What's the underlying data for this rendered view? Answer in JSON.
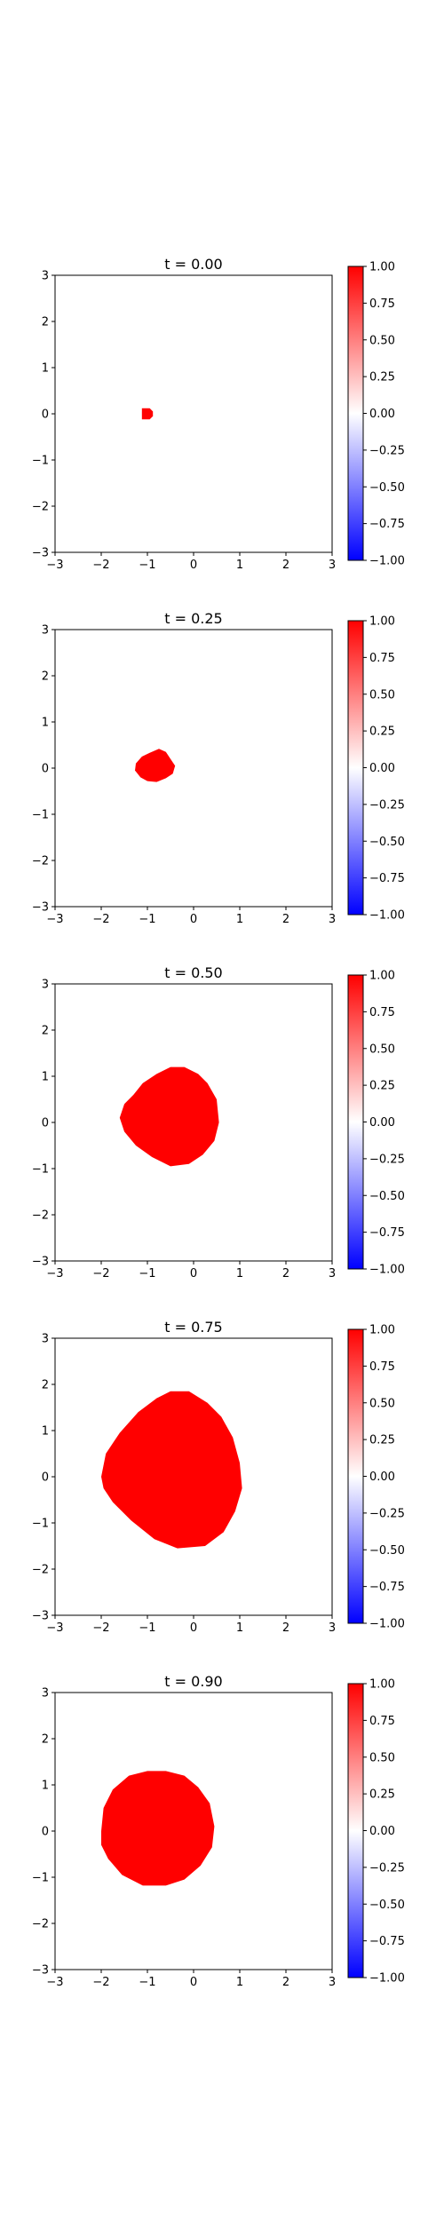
{
  "chart_data": [
    {
      "type": "heatmap",
      "title": "t = 0.00",
      "xlim": [
        -3,
        3
      ],
      "ylim": [
        -3,
        3
      ],
      "xticks": [
        "−3",
        "−2",
        "−1",
        "0",
        "1",
        "2",
        "3"
      ],
      "yticks": [
        "3",
        "2",
        "1",
        "0",
        "−1",
        "−2",
        "−3"
      ],
      "region_value": 1.0,
      "background_value": 0.0,
      "region_outline": [
        [
          -1.12,
          0.12
        ],
        [
          -0.95,
          0.12
        ],
        [
          -0.88,
          0.05
        ],
        [
          -0.88,
          -0.05
        ],
        [
          -0.95,
          -0.12
        ],
        [
          -1.12,
          -0.12
        ]
      ],
      "colorbar": {
        "cmap": "bwr",
        "vmin": -1.0,
        "vmax": 1.0,
        "ticks": [
          "1.00",
          "0.75",
          "0.50",
          "0.25",
          "0.00",
          "−0.25",
          "−0.50",
          "−0.75",
          "−1.00"
        ],
        "tick_values": [
          1.0,
          0.75,
          0.5,
          0.25,
          0.0,
          -0.25,
          -0.5,
          -0.75,
          -1.0
        ]
      }
    },
    {
      "type": "heatmap",
      "title": "t = 0.25",
      "xlim": [
        -3,
        3
      ],
      "ylim": [
        -3,
        3
      ],
      "xticks": [
        "−3",
        "−2",
        "−1",
        "0",
        "1",
        "2",
        "3"
      ],
      "yticks": [
        "3",
        "2",
        "1",
        "0",
        "−1",
        "−2",
        "−3"
      ],
      "region_value": 1.0,
      "background_value": 0.0,
      "region_outline": [
        [
          -1.25,
          0.1
        ],
        [
          -1.12,
          0.25
        ],
        [
          -0.95,
          0.33
        ],
        [
          -0.75,
          0.42
        ],
        [
          -0.6,
          0.35
        ],
        [
          -0.5,
          0.2
        ],
        [
          -0.4,
          0.05
        ],
        [
          -0.45,
          -0.12
        ],
        [
          -0.6,
          -0.22
        ],
        [
          -0.8,
          -0.3
        ],
        [
          -1.0,
          -0.28
        ],
        [
          -1.15,
          -0.2
        ],
        [
          -1.27,
          -0.05
        ]
      ],
      "colorbar": {
        "cmap": "bwr",
        "vmin": -1.0,
        "vmax": 1.0,
        "ticks": [
          "1.00",
          "0.75",
          "0.50",
          "0.25",
          "0.00",
          "−0.25",
          "−0.50",
          "−0.75",
          "−1.00"
        ],
        "tick_values": [
          1.0,
          0.75,
          0.5,
          0.25,
          0.0,
          -0.25,
          -0.5,
          -0.75,
          -1.0
        ]
      }
    },
    {
      "type": "heatmap",
      "title": "t = 0.50",
      "xlim": [
        -3,
        3
      ],
      "ylim": [
        -3,
        3
      ],
      "xticks": [
        "−3",
        "−2",
        "−1",
        "0",
        "1",
        "2",
        "3"
      ],
      "yticks": [
        "3",
        "2",
        "1",
        "0",
        "−1",
        "−2",
        "−3"
      ],
      "region_value": 1.0,
      "background_value": 0.0,
      "region_outline": [
        [
          -1.6,
          0.1
        ],
        [
          -1.5,
          0.4
        ],
        [
          -1.3,
          0.6
        ],
        [
          -1.1,
          0.85
        ],
        [
          -0.8,
          1.05
        ],
        [
          -0.5,
          1.2
        ],
        [
          -0.2,
          1.2
        ],
        [
          0.1,
          1.05
        ],
        [
          0.3,
          0.85
        ],
        [
          0.5,
          0.5
        ],
        [
          0.55,
          0.0
        ],
        [
          0.45,
          -0.4
        ],
        [
          0.2,
          -0.7
        ],
        [
          -0.1,
          -0.9
        ],
        [
          -0.5,
          -0.95
        ],
        [
          -0.9,
          -0.75
        ],
        [
          -1.25,
          -0.5
        ],
        [
          -1.5,
          -0.2
        ]
      ],
      "colorbar": {
        "cmap": "bwr",
        "vmin": -1.0,
        "vmax": 1.0,
        "ticks": [
          "1.00",
          "0.75",
          "0.50",
          "0.25",
          "0.00",
          "−0.25",
          "−0.50",
          "−0.75",
          "−1.00"
        ],
        "tick_values": [
          1.0,
          0.75,
          0.5,
          0.25,
          0.0,
          -0.25,
          -0.5,
          -0.75,
          -1.0
        ]
      }
    },
    {
      "type": "heatmap",
      "title": "t = 0.75",
      "xlim": [
        -3,
        3
      ],
      "ylim": [
        -3,
        3
      ],
      "xticks": [
        "−3",
        "−2",
        "−1",
        "0",
        "1",
        "2",
        "3"
      ],
      "yticks": [
        "3",
        "2",
        "1",
        "0",
        "−1",
        "−2",
        "−3"
      ],
      "region_value": 1.0,
      "background_value": 0.0,
      "region_outline": [
        [
          -2.0,
          0.0
        ],
        [
          -1.9,
          0.5
        ],
        [
          -1.6,
          0.95
        ],
        [
          -1.2,
          1.4
        ],
        [
          -0.8,
          1.7
        ],
        [
          -0.5,
          1.85
        ],
        [
          -0.1,
          1.85
        ],
        [
          0.3,
          1.6
        ],
        [
          0.6,
          1.3
        ],
        [
          0.85,
          0.85
        ],
        [
          1.0,
          0.3
        ],
        [
          1.05,
          -0.25
        ],
        [
          0.9,
          -0.75
        ],
        [
          0.65,
          -1.2
        ],
        [
          0.25,
          -1.5
        ],
        [
          -0.35,
          -1.55
        ],
        [
          -0.85,
          -1.35
        ],
        [
          -1.35,
          -0.95
        ],
        [
          -1.75,
          -0.55
        ],
        [
          -1.95,
          -0.25
        ]
      ],
      "colorbar": {
        "cmap": "bwr",
        "vmin": -1.0,
        "vmax": 1.0,
        "ticks": [
          "1.00",
          "0.75",
          "0.50",
          "0.25",
          "0.00",
          "−0.25",
          "−0.50",
          "−0.75",
          "−1.00"
        ],
        "tick_values": [
          1.0,
          0.75,
          0.5,
          0.25,
          0.0,
          -0.25,
          -0.5,
          -0.75,
          -1.0
        ]
      }
    },
    {
      "type": "heatmap",
      "title": "t = 0.90",
      "xlim": [
        -3,
        3
      ],
      "ylim": [
        -3,
        3
      ],
      "xticks": [
        "−3",
        "−2",
        "−1",
        "0",
        "1",
        "2",
        "3"
      ],
      "yticks": [
        "3",
        "2",
        "1",
        "0",
        "−1",
        "−2",
        "−3"
      ],
      "region_value": 1.0,
      "background_value": 0.0,
      "region_outline": [
        [
          -2.0,
          0.0
        ],
        [
          -1.95,
          0.5
        ],
        [
          -1.75,
          0.9
        ],
        [
          -1.4,
          1.2
        ],
        [
          -1.0,
          1.3
        ],
        [
          -0.6,
          1.3
        ],
        [
          -0.2,
          1.2
        ],
        [
          0.1,
          0.95
        ],
        [
          0.35,
          0.6
        ],
        [
          0.45,
          0.1
        ],
        [
          0.4,
          -0.35
        ],
        [
          0.15,
          -0.75
        ],
        [
          -0.2,
          -1.05
        ],
        [
          -0.6,
          -1.18
        ],
        [
          -1.1,
          -1.18
        ],
        [
          -1.55,
          -0.95
        ],
        [
          -1.85,
          -0.6
        ],
        [
          -2.0,
          -0.3
        ]
      ],
      "colorbar": {
        "cmap": "bwr",
        "vmin": -1.0,
        "vmax": 1.0,
        "ticks": [
          "1.00",
          "0.75",
          "0.50",
          "0.25",
          "0.00",
          "−0.25",
          "−0.50",
          "−0.75",
          "−1.00"
        ],
        "tick_values": [
          1.0,
          0.75,
          0.5,
          0.25,
          0.0,
          -0.25,
          -0.5,
          -0.75,
          -1.0
        ]
      }
    }
  ],
  "colors": {
    "positive": "#ff0000",
    "zero": "#ffffff",
    "negative": "#0000ff",
    "axes": "#000000"
  }
}
